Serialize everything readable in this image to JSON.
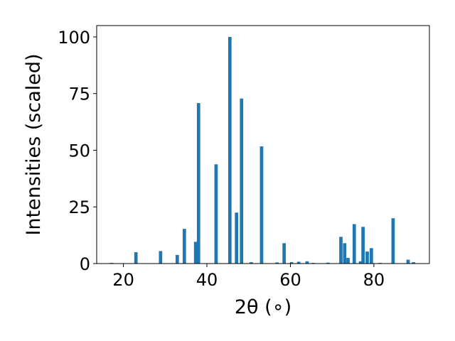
{
  "chart_data": {
    "type": "bar",
    "title": "",
    "xlabel": "2θ (∘)",
    "ylabel": "Intensities (scaled)",
    "xlim": [
      13.6,
      93.3
    ],
    "ylim": [
      0,
      105
    ],
    "xticks": [
      20,
      40,
      60,
      80
    ],
    "yticks": [
      0,
      25,
      50,
      75,
      100
    ],
    "bar_width": 0.8,
    "grid": false,
    "legend": "none",
    "bar_color": "#1f77b4",
    "series": [
      {
        "x": [
          17.2,
          23.0,
          28.9,
          32.9,
          34.6,
          37.3,
          38.0,
          42.2,
          45.5,
          47.1,
          48.3,
          50.6,
          53.1,
          56.8,
          58.5,
          60.3,
          62.0,
          64.0,
          65.5,
          69.0,
          72.1,
          73.0,
          73.8,
          75.3,
          76.8,
          77.4,
          78.4,
          79.4,
          81.5,
          84.6,
          88.2,
          89.5
        ],
        "y": [
          0.3,
          5.0,
          5.5,
          3.8,
          15.3,
          9.6,
          70.8,
          43.8,
          100.0,
          22.5,
          72.8,
          0.6,
          51.7,
          0.5,
          9.0,
          0.6,
          0.8,
          1.0,
          0.3,
          0.4,
          11.8,
          9.0,
          2.5,
          17.4,
          1.0,
          16.2,
          5.3,
          6.8,
          0.3,
          20.0,
          1.7,
          0.6
        ]
      }
    ]
  }
}
